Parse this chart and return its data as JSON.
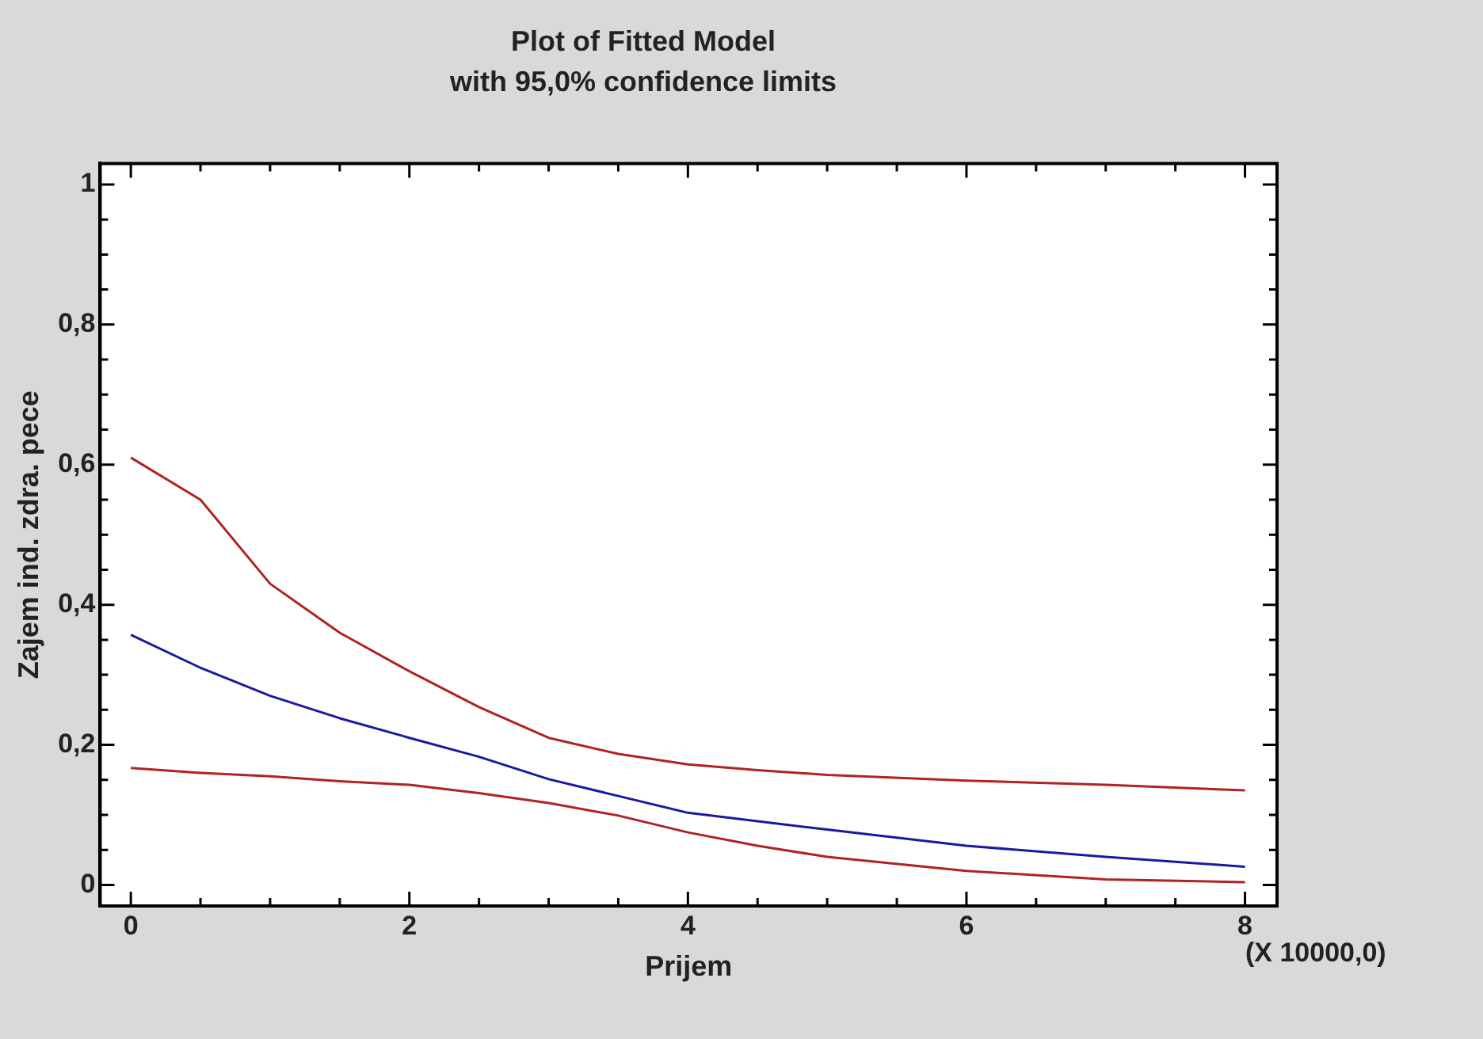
{
  "chart_data": {
    "type": "line",
    "title": "Plot of Fitted Model",
    "subtitle": "with 95,0% confidence limits",
    "xlabel": "Prijem",
    "ylabel": "Zajem ind. zdra. pece",
    "annotations": [
      "(X 10000,0)"
    ],
    "xlim": [
      -0.22,
      8.23
    ],
    "ylim": [
      -0.03,
      1.03
    ],
    "xticks": [
      0,
      {
        "value": 0.5,
        "label": null
      },
      {
        "value": 1,
        "label": null
      },
      {
        "value": 1.5,
        "label": null
      },
      2,
      {
        "value": 2.5,
        "label": null
      },
      {
        "value": 3,
        "label": null
      },
      {
        "value": 3.5,
        "label": null
      },
      4,
      {
        "value": 4.5,
        "label": null
      },
      {
        "value": 5,
        "label": null
      },
      {
        "value": 5.5,
        "label": null
      },
      6,
      {
        "value": 6.5,
        "label": null
      },
      {
        "value": 7,
        "label": null
      },
      {
        "value": 7.5,
        "label": null
      },
      8
    ],
    "yticks": [
      0,
      {
        "value": 0.05,
        "label": null
      },
      {
        "value": 0.1,
        "label": null
      },
      {
        "value": 0.15,
        "label": null
      },
      {
        "value": 0.2,
        "label": "0,2"
      },
      {
        "value": 0.25,
        "label": null
      },
      {
        "value": 0.3,
        "label": null
      },
      {
        "value": 0.35,
        "label": null
      },
      {
        "value": 0.4,
        "label": "0,4"
      },
      {
        "value": 0.45,
        "label": null
      },
      {
        "value": 0.5,
        "label": null
      },
      {
        "value": 0.55,
        "label": null
      },
      {
        "value": 0.6,
        "label": "0,6"
      },
      {
        "value": 0.65,
        "label": null
      },
      {
        "value": 0.7,
        "label": null
      },
      {
        "value": 0.75,
        "label": null
      },
      {
        "value": 0.8,
        "label": "0,8"
      },
      {
        "value": 0.85,
        "label": null
      },
      {
        "value": 0.9,
        "label": null
      },
      {
        "value": 0.95,
        "label": null
      },
      1
    ],
    "grid": false,
    "legend": false,
    "marker": "none",
    "line_style": "solid",
    "x": [
      0,
      0.5,
      1,
      1.5,
      2,
      2.5,
      3,
      3.5,
      4,
      4.5,
      5,
      6,
      7,
      8
    ],
    "series": [
      {
        "color": "#b22222",
        "values": [
          0.61,
          0.55,
          0.43,
          0.36,
          0.305,
          0.254,
          0.21,
          0.187,
          0.172,
          0.164,
          0.157,
          0.149,
          0.143,
          0.135
        ]
      },
      {
        "color": "#1a1aa0",
        "values": [
          0.357,
          0.31,
          0.27,
          0.238,
          0.21,
          0.183,
          0.151,
          0.127,
          0.103,
          0.091,
          0.079,
          0.056,
          0.04,
          0.026
        ]
      },
      {
        "color": "#b22222",
        "values": [
          0.167,
          0.16,
          0.155,
          0.148,
          0.143,
          0.131,
          0.117,
          0.099,
          0.075,
          0.056,
          0.04,
          0.02,
          0.008,
          0.004
        ]
      }
    ]
  }
}
